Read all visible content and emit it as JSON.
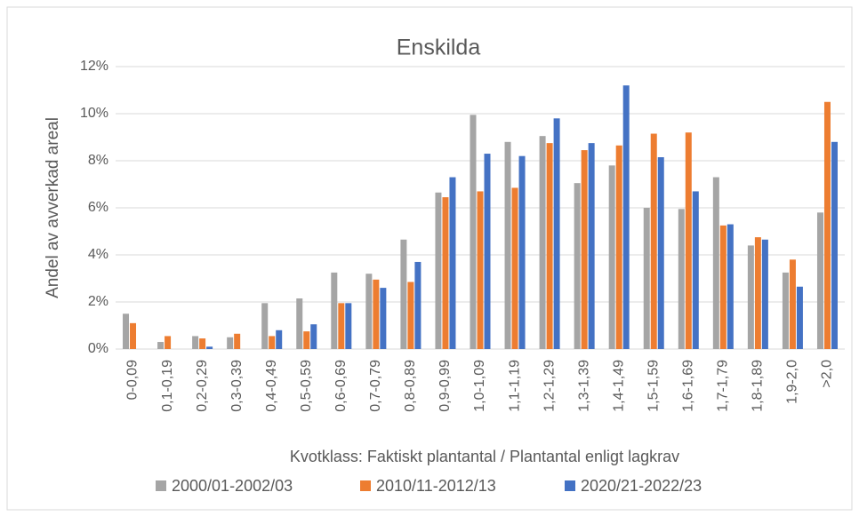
{
  "chart_data": {
    "type": "bar",
    "title": "Enskilda",
    "y_label": "Andel av avverkad areal",
    "x_label": "Kvotklass: Faktiskt plantantal / Plantantal enligt lagkrav",
    "categories": [
      "0-0,09",
      "0,1-0,19",
      "0,2-0,29",
      "0,3-0,39",
      "0,4-0,49",
      "0,5-0,59",
      "0,6-0,69",
      "0,7-0,79",
      "0,8-0,89",
      "0,9-0,99",
      "1,0-1,09",
      "1,1-1,19",
      "1,2-1,29",
      "1,3-1,39",
      "1,4-1,49",
      "1,5-1,59",
      "1,6-1,69",
      "1,7-1,79",
      "1,8-1,89",
      "1,9-2,0",
      ">2,0"
    ],
    "series": [
      {
        "name": "2000/01-2002/03",
        "color": "#a5a5a5",
        "values": [
          1.5,
          0.3,
          0.55,
          0.5,
          1.95,
          2.15,
          3.25,
          3.2,
          4.65,
          6.65,
          9.95,
          8.8,
          9.05,
          7.05,
          7.8,
          6.0,
          5.95,
          7.3,
          4.4,
          3.25,
          5.8
        ]
      },
      {
        "name": "2010/11-2012/13",
        "color": "#ed7d31",
        "values": [
          1.1,
          0.55,
          0.45,
          0.65,
          0.55,
          0.75,
          1.95,
          2.95,
          2.85,
          6.45,
          6.7,
          6.85,
          8.75,
          8.45,
          8.65,
          9.15,
          9.2,
          5.25,
          4.75,
          3.8,
          10.5
        ]
      },
      {
        "name": "2020/21-2022/23",
        "color": "#4472c4",
        "values": [
          0,
          0,
          0.1,
          0,
          0.8,
          1.05,
          1.95,
          2.6,
          3.7,
          7.3,
          8.3,
          8.2,
          9.8,
          8.75,
          11.2,
          8.15,
          6.7,
          5.3,
          4.65,
          2.65,
          8.8
        ]
      }
    ],
    "ylim": [
      0,
      12
    ],
    "yticks": [
      {
        "value": 0,
        "label": "0%"
      },
      {
        "value": 2,
        "label": "2%"
      },
      {
        "value": 4,
        "label": "4%"
      },
      {
        "value": 6,
        "label": "6%"
      },
      {
        "value": 8,
        "label": "8%"
      },
      {
        "value": 10,
        "label": "10%"
      },
      {
        "value": 12,
        "label": "12%"
      }
    ],
    "grid": true,
    "legend": "bottom"
  }
}
